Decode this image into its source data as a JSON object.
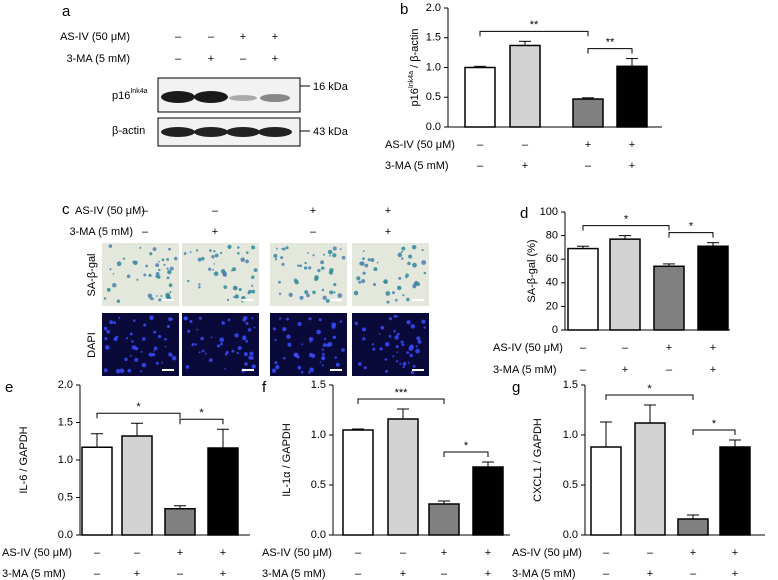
{
  "chart_data": [
    {
      "type": "bar",
      "panel": "b",
      "ylabel": [
        "p16",
        "Ink4a",
        " / β-actin"
      ],
      "ylim": [
        0,
        2
      ],
      "yticks": [
        {
          "value": 0,
          "label": "0.0"
        },
        {
          "value": 0.5,
          "label": "0.5"
        },
        {
          "value": 1,
          "label": "1.0"
        },
        {
          "value": 1.5,
          "label": "1.5"
        },
        {
          "value": 2,
          "label": "2.0"
        }
      ],
      "values": [
        1.0,
        1.37,
        0.47,
        1.02
      ],
      "errors": [
        0.02,
        0.07,
        0.02,
        0.13
      ],
      "colors": [
        "#ffffff",
        "#d3d3d3",
        "#808080",
        "#000000"
      ],
      "annotations": [
        "**",
        "**"
      ],
      "treatments": [
        {
          "label": "AS-IV (50 μM)",
          "signs": [
            "–",
            "–",
            "+",
            "+"
          ]
        },
        {
          "label": "3-MA (5 mM)",
          "signs": [
            "–",
            "+",
            "–",
            "+"
          ]
        }
      ]
    },
    {
      "type": "bar",
      "panel": "d",
      "ylabel": "SA-β-gal (%)",
      "ylim": [
        0,
        100
      ],
      "yticks": [
        0,
        20,
        40,
        60,
        80,
        100
      ],
      "values": [
        69,
        77,
        54,
        71
      ],
      "errors": [
        2,
        3,
        2,
        3
      ],
      "colors": [
        "#ffffff",
        "#d3d3d3",
        "#808080",
        "#000000"
      ],
      "annotations": [
        "*",
        "*"
      ],
      "treatments": [
        {
          "label": "AS-IV (50 μM)",
          "signs": [
            "–",
            "–",
            "+",
            "+"
          ]
        },
        {
          "label": "3-MA (5 mM)",
          "signs": [
            "–",
            "+",
            "–",
            "+"
          ]
        }
      ]
    },
    {
      "type": "bar",
      "panel": "e",
      "ylabel": "IL-6 / GAPDH",
      "ylim": [
        0,
        2
      ],
      "yticks": [
        {
          "value": 0,
          "label": "0.0"
        },
        {
          "value": 0.5,
          "label": "0.5"
        },
        {
          "value": 1,
          "label": "1.0"
        },
        {
          "value": 1.5,
          "label": "1.5"
        },
        {
          "value": 2,
          "label": "2.0"
        }
      ],
      "values": [
        1.17,
        1.32,
        0.35,
        1.16
      ],
      "errors": [
        0.18,
        0.17,
        0.04,
        0.25
      ],
      "colors": [
        "#ffffff",
        "#d3d3d3",
        "#808080",
        "#000000"
      ],
      "annotations": [
        "*",
        "*"
      ],
      "treatments": [
        {
          "label": "AS-IV (50 μM)",
          "signs": [
            "–",
            "–",
            "+",
            "+"
          ]
        },
        {
          "label": "3-MA (5 mM)",
          "signs": [
            "–",
            "+",
            "–",
            "+"
          ]
        }
      ]
    },
    {
      "type": "bar",
      "panel": "f",
      "ylabel": "IL-1α / GAPDH",
      "ylim": [
        0,
        1.5
      ],
      "yticks": [
        {
          "value": 0,
          "label": "0.0"
        },
        {
          "value": 0.5,
          "label": "0.5"
        },
        {
          "value": 1,
          "label": "1.0"
        },
        {
          "value": 1.5,
          "label": "1.5"
        }
      ],
      "values": [
        1.05,
        1.16,
        0.31,
        0.68
      ],
      "errors": [
        0.01,
        0.1,
        0.03,
        0.05
      ],
      "colors": [
        "#ffffff",
        "#d3d3d3",
        "#808080",
        "#000000"
      ],
      "annotations": [
        "***",
        "*"
      ],
      "treatments": [
        {
          "label": "AS-IV (50 μM)",
          "signs": [
            "–",
            "–",
            "+",
            "+"
          ]
        },
        {
          "label": "3-MA (5 mM)",
          "signs": [
            "–",
            "+",
            "–",
            "+"
          ]
        }
      ]
    },
    {
      "type": "bar",
      "panel": "g",
      "ylabel": "CXCL1 / GAPDH",
      "ylim": [
        0,
        1.5
      ],
      "yticks": [
        {
          "value": 0,
          "label": "0.0"
        },
        {
          "value": 0.5,
          "label": "0.5"
        },
        {
          "value": 1,
          "label": "1.0"
        },
        {
          "value": 1.5,
          "label": "1.5"
        }
      ],
      "values": [
        0.88,
        1.12,
        0.16,
        0.88
      ],
      "errors": [
        0.25,
        0.18,
        0.04,
        0.07
      ],
      "colors": [
        "#ffffff",
        "#d3d3d3",
        "#808080",
        "#000000"
      ],
      "annotations": [
        "*",
        "*"
      ],
      "treatments": [
        {
          "label": "AS-IV (50 μM)",
          "signs": [
            "–",
            "–",
            "+",
            "+"
          ]
        },
        {
          "label": "3-MA (5 mM)",
          "signs": [
            "–",
            "+",
            "–",
            "+"
          ]
        }
      ]
    }
  ],
  "panel_a": {
    "panel": "a",
    "treatments": [
      {
        "label": "AS-IV (50 μM)",
        "signs": [
          "–",
          "–",
          "+",
          "+"
        ]
      },
      {
        "label": "3-MA (5 mM)",
        "signs": [
          "–",
          "+",
          "–",
          "+"
        ]
      }
    ],
    "bands": [
      {
        "name": [
          "p16",
          "Ink4a"
        ],
        "marker": "16 kDa"
      },
      {
        "name": "β-actin",
        "marker": "43 kDa"
      }
    ]
  },
  "panel_c": {
    "panel": "c",
    "treatments": [
      {
        "label": "AS-IV (50 μM)",
        "signs": [
          "–",
          "–",
          "+",
          "+"
        ]
      },
      {
        "label": "3-MA (5 mM)",
        "signs": [
          "–",
          "+",
          "–",
          "+"
        ]
      }
    ],
    "rows": [
      "SA-β-gal",
      "DAPI"
    ]
  }
}
